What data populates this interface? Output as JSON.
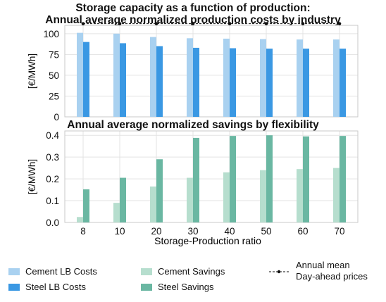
{
  "figure": {
    "title_line1": "Storage capacity as a function of production:",
    "title_line2": "Annual average normalized production costs by industry",
    "subtitle_bottom": "Annual average normalized savings by flexibility",
    "xlabel": "Storage-Production ratio"
  },
  "legend": {
    "cement_lb_costs": "Cement LB Costs",
    "steel_lb_costs": "Steel LB Costs",
    "cement_savings": "Cement Savings",
    "steel_savings": "Steel Savings",
    "dayahead_line1": "Annual mean",
    "dayahead_line2": "Day-ahead prices"
  },
  "colors": {
    "cement_costs": "#a9d1f0",
    "steel_costs": "#3a98e3",
    "cement_savings": "#b6dece",
    "steel_savings": "#6ab7a2",
    "dayahead": "#111111",
    "grid": "#e3e3e3",
    "axis": "#c9c9c9"
  },
  "chart_data": [
    {
      "type": "bar",
      "title": "Annual average normalized production costs by industry",
      "ylabel": "[€/MWh]",
      "ylim": [
        0,
        110
      ],
      "yticks": [
        0,
        25,
        50,
        75,
        100
      ],
      "grid": true,
      "categories": [
        "8",
        "10",
        "20",
        "30",
        "40",
        "50",
        "60",
        "70"
      ],
      "series": [
        {
          "name": "Cement LB Costs",
          "values": [
            101,
            100,
            96,
            94.5,
            94,
            93.5,
            93,
            93
          ]
        },
        {
          "name": "Steel LB Costs",
          "values": [
            90,
            88.5,
            85,
            83,
            82.5,
            82,
            82,
            82
          ]
        }
      ],
      "line_series": {
        "name": "Annual mean Day-ahead prices",
        "values": [
          112,
          112,
          112,
          112,
          112,
          112,
          112,
          112
        ]
      }
    },
    {
      "type": "bar",
      "title": "Annual average normalized savings by flexibility",
      "ylabel": "[€/MWh]",
      "xlabel": "Storage-Production ratio",
      "ylim": [
        0,
        0.42
      ],
      "yticks": [
        0.0,
        0.1,
        0.2,
        0.3,
        0.4
      ],
      "grid": true,
      "categories": [
        "8",
        "10",
        "20",
        "30",
        "40",
        "50",
        "60",
        "70"
      ],
      "series": [
        {
          "name": "Cement Savings",
          "values": [
            0.025,
            0.09,
            0.165,
            0.205,
            0.23,
            0.24,
            0.245,
            0.25
          ]
        },
        {
          "name": "Steel Savings",
          "values": [
            0.152,
            0.205,
            0.29,
            0.388,
            0.397,
            0.4,
            0.395,
            0.397
          ]
        }
      ]
    }
  ]
}
